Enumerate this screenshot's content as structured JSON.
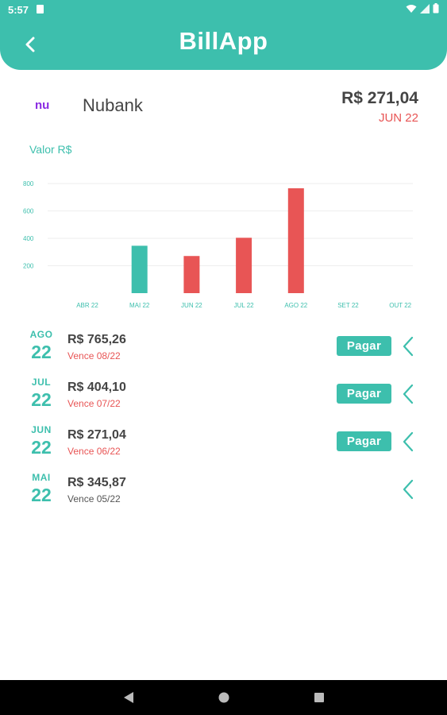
{
  "status_bar": {
    "time": "5:57"
  },
  "header": {
    "title": "BillApp"
  },
  "bank": {
    "name": "Nubank",
    "logo_text": "nu",
    "amount": "R$ 271,04",
    "month": "JUN 22"
  },
  "chart_data": {
    "type": "bar",
    "title": "",
    "ylabel": "Valor R$",
    "xlabel": "",
    "categories": [
      "ABR 22",
      "MAI 22",
      "JUN 22",
      "JUL 22",
      "AGO 22",
      "SET 22",
      "OUT 22"
    ],
    "values": [
      0,
      345.87,
      271.04,
      404.1,
      765.26,
      0,
      0
    ],
    "bar_colors": [
      "#3dbfad",
      "#3dbfad",
      "#e85555",
      "#e85555",
      "#e85555",
      "#e85555",
      "#e85555"
    ],
    "yticks": [
      200,
      400,
      600,
      800
    ],
    "ylim": [
      0,
      800
    ],
    "grid": true
  },
  "bills": [
    {
      "month": "AGO",
      "year": "22",
      "amount": "R$ 765,26",
      "due": "Vence 08/22",
      "pay_label": "Pagar",
      "overdue": true,
      "show_pay": true
    },
    {
      "month": "JUL",
      "year": "22",
      "amount": "R$ 404,10",
      "due": "Vence 07/22",
      "pay_label": "Pagar",
      "overdue": true,
      "show_pay": true
    },
    {
      "month": "JUN",
      "year": "22",
      "amount": "R$ 271,04",
      "due": "Vence 06/22",
      "pay_label": "Pagar",
      "overdue": true,
      "show_pay": true
    },
    {
      "month": "MAI",
      "year": "22",
      "amount": "R$ 345,87",
      "due": "Vence 05/22",
      "pay_label": "",
      "overdue": false,
      "show_pay": false
    }
  ],
  "colors": {
    "accent": "#3dbfad",
    "alert": "#e85555",
    "logo": "#8a2be2"
  }
}
